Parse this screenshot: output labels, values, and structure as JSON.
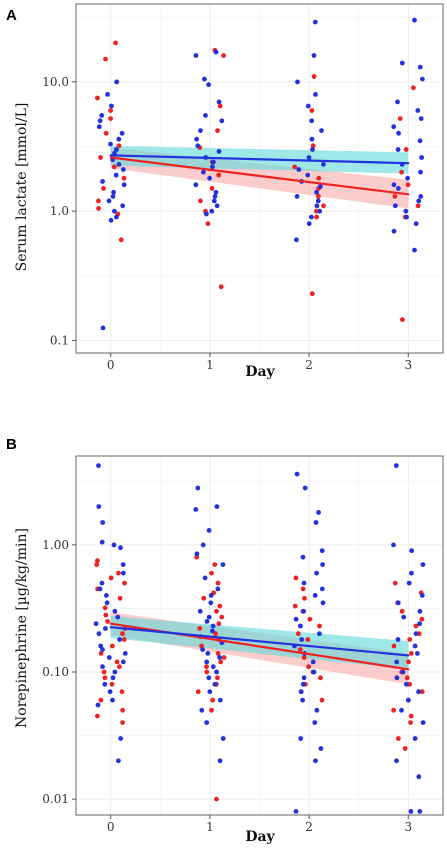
{
  "chart_data": [
    {
      "panel": "A",
      "type": "scatter",
      "ylabel": "Serum lactate [mmol/L]",
      "xlabel": "Day",
      "x_ticks": [
        "0",
        "1",
        "2",
        "3"
      ],
      "y_scale": "log10",
      "y_ticks": [
        "0.1",
        "1.0",
        "10.0"
      ],
      "y_tick_values": [
        0.1,
        1.0,
        10.0
      ],
      "ylim": [
        0.08,
        40
      ],
      "xlim": [
        -0.35,
        3.35
      ],
      "grid": true,
      "colors": {
        "red": "#ee2222",
        "blue": "#2233dd",
        "red_band": "#f5a3a3",
        "blue_band": "#5fd8d8",
        "overlap": "#888888"
      },
      "series": [
        {
          "color": "red",
          "points": [
            [
              0,
              [
                20.0,
                15.0,
                7.5,
                6.0,
                5.2,
                4.0,
                3.2,
                2.6,
                2.2,
                1.8,
                1.5,
                1.2,
                1.05,
                0.95,
                0.6
              ]
            ],
            [
              1,
              [
                17.5,
                16.0,
                6.5,
                4.2,
                3.1,
                2.4,
                1.9,
                1.5,
                1.2,
                1.0,
                0.8,
                0.26
              ]
            ],
            [
              2,
              [
                11.0,
                6.0,
                3.2,
                2.2,
                1.8,
                1.5,
                1.3,
                1.1,
                1.0,
                0.9,
                0.23
              ]
            ],
            [
              3,
              [
                9.0,
                5.2,
                3.0,
                2.0,
                1.6,
                1.3,
                1.1,
                0.9,
                0.145
              ]
            ]
          ],
          "trend": {
            "x": [
              0,
              3
            ],
            "y": [
              2.6,
              1.35
            ]
          },
          "band": {
            "lower": [
              2.15,
              1.05
            ],
            "upper": [
              3.1,
              1.75
            ]
          }
        },
        {
          "color": "blue",
          "points": [
            [
              0,
              [
                10.0,
                8.0,
                6.5,
                5.5,
                5.0,
                4.5,
                4.0,
                3.6,
                3.3,
                3.0,
                2.8,
                2.5,
                2.3,
                2.1,
                1.9,
                1.7,
                1.6,
                1.4,
                1.3,
                1.2,
                1.1,
                1.0,
                0.9,
                0.85,
                0.125
              ]
            ],
            [
              1,
              [
                17.0,
                16.0,
                10.5,
                9.5,
                7.0,
                5.5,
                5.0,
                4.2,
                3.6,
                3.2,
                2.9,
                2.6,
                2.4,
                2.2,
                2.0,
                1.8,
                1.6,
                1.4,
                1.3,
                1.2,
                1.1,
                1.0,
                0.95
              ]
            ],
            [
              2,
              [
                29.0,
                16.0,
                10.0,
                8.0,
                6.5,
                5.0,
                4.2,
                3.6,
                3.0,
                2.6,
                2.3,
                2.1,
                1.9,
                1.7,
                1.55,
                1.4,
                1.3,
                1.2,
                1.1,
                1.0,
                0.9,
                0.8,
                0.6
              ]
            ],
            [
              3,
              [
                30.0,
                14.0,
                13.0,
                10.5,
                7.0,
                6.0,
                5.2,
                4.5,
                4.0,
                3.5,
                3.0,
                2.6,
                2.3,
                2.0,
                1.8,
                1.6,
                1.5,
                1.3,
                1.2,
                1.1,
                1.0,
                0.9,
                0.8,
                0.7,
                0.5
              ]
            ]
          ],
          "trend": {
            "x": [
              0,
              3
            ],
            "y": [
              2.7,
              2.35
            ]
          },
          "band": {
            "lower": [
              2.25,
              1.95
            ],
            "upper": [
              3.2,
              2.85
            ]
          }
        }
      ]
    },
    {
      "panel": "B",
      "type": "scatter",
      "ylabel": "Norepinephrine [µg/kg/min]",
      "xlabel": "Day",
      "x_ticks": [
        "0",
        "1",
        "2",
        "3"
      ],
      "y_scale": "log10",
      "y_ticks": [
        "0.01",
        "0.10",
        "1.00"
      ],
      "y_tick_values": [
        0.01,
        0.1,
        1.0
      ],
      "ylim": [
        0.0075,
        5.0
      ],
      "xlim": [
        -0.35,
        3.35
      ],
      "grid": true,
      "colors": {
        "red": "#ee2222",
        "blue": "#2233dd",
        "red_band": "#f5a3a3",
        "blue_band": "#5fd8d8",
        "overlap": "#888888"
      },
      "series": [
        {
          "color": "red",
          "points": [
            [
              0,
              [
                0.75,
                0.7,
                0.6,
                0.55,
                0.5,
                0.45,
                0.38,
                0.32,
                0.28,
                0.25,
                0.22,
                0.2,
                0.18,
                0.16,
                0.14,
                0.12,
                0.11,
                0.1,
                0.09,
                0.08,
                0.07,
                0.06,
                0.05,
                0.045,
                0.04
              ]
            ],
            [
              1,
              [
                0.8,
                0.7,
                0.6,
                0.5,
                0.42,
                0.38,
                0.33,
                0.3,
                0.27,
                0.24,
                0.22,
                0.2,
                0.18,
                0.16,
                0.14,
                0.13,
                0.12,
                0.11,
                0.1,
                0.09,
                0.08,
                0.07,
                0.06,
                0.05,
                0.01
              ]
            ],
            [
              2,
              [
                0.55,
                0.45,
                0.38,
                0.33,
                0.3,
                0.26,
                0.23,
                0.2,
                0.18,
                0.15,
                0.13,
                0.11,
                0.1,
                0.09,
                0.08,
                0.07,
                0.06
              ]
            ],
            [
              3,
              [
                0.5,
                0.42,
                0.35,
                0.3,
                0.26,
                0.23,
                0.2,
                0.18,
                0.16,
                0.14,
                0.12,
                0.1,
                0.09,
                0.08,
                0.07,
                0.06,
                0.05,
                0.045,
                0.04,
                0.03,
                0.025
              ]
            ]
          ],
          "trend": {
            "x": [
              0,
              3
            ],
            "y": [
              0.24,
              0.105
            ]
          },
          "band": {
            "lower": [
              0.195,
              0.08
            ],
            "upper": [
              0.295,
              0.14
            ]
          }
        },
        {
          "color": "blue",
          "points": [
            [
              0,
              [
                4.2,
                2.0,
                1.5,
                1.05,
                1.0,
                0.95,
                0.7,
                0.6,
                0.5,
                0.45,
                0.4,
                0.35,
                0.3,
                0.27,
                0.24,
                0.22,
                0.2,
                0.18,
                0.16,
                0.15,
                0.14,
                0.13,
                0.12,
                0.11,
                0.1,
                0.09,
                0.08,
                0.07,
                0.06,
                0.055,
                0.03,
                0.02
              ]
            ],
            [
              1,
              [
                2.8,
                2.0,
                1.9,
                1.3,
                1.0,
                0.85,
                0.7,
                0.55,
                0.45,
                0.4,
                0.35,
                0.3,
                0.27,
                0.25,
                0.23,
                0.21,
                0.19,
                0.17,
                0.15,
                0.14,
                0.13,
                0.12,
                0.11,
                0.1,
                0.09,
                0.08,
                0.07,
                0.06,
                0.05,
                0.04,
                0.03,
                0.02
              ]
            ],
            [
              2,
              [
                3.6,
                2.8,
                1.8,
                1.5,
                0.9,
                0.8,
                0.7,
                0.6,
                0.5,
                0.45,
                0.4,
                0.35,
                0.3,
                0.26,
                0.23,
                0.2,
                0.18,
                0.16,
                0.14,
                0.12,
                0.1,
                0.09,
                0.08,
                0.07,
                0.06,
                0.05,
                0.04,
                0.03,
                0.025,
                0.02,
                0.008
              ]
            ],
            [
              3,
              [
                4.2,
                1.0,
                0.9,
                0.7,
                0.6,
                0.5,
                0.4,
                0.35,
                0.3,
                0.27,
                0.24,
                0.2,
                0.18,
                0.16,
                0.14,
                0.12,
                0.1,
                0.09,
                0.08,
                0.07,
                0.06,
                0.05,
                0.04,
                0.03,
                0.02,
                0.015,
                0.008,
                0.008
              ]
            ]
          ],
          "trend": {
            "x": [
              0,
              3
            ],
            "y": [
              0.225,
              0.135
            ]
          },
          "band": {
            "lower": [
              0.185,
              0.105
            ],
            "upper": [
              0.275,
              0.175
            ]
          }
        }
      ]
    }
  ]
}
